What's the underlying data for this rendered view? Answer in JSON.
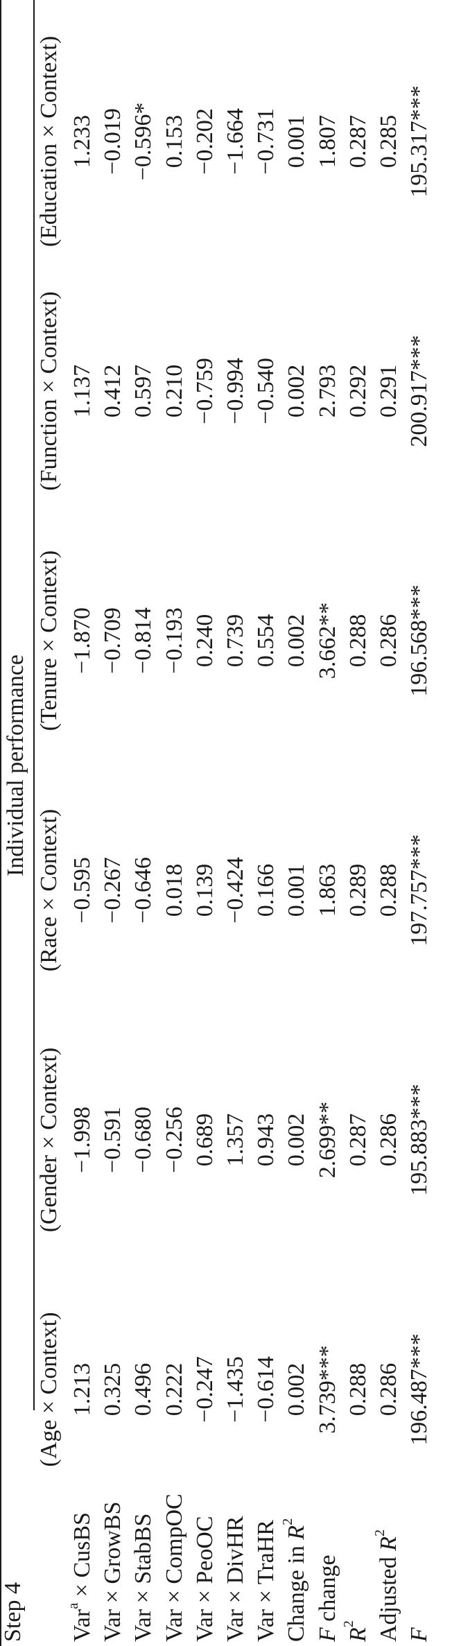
{
  "step_label": "Step 4",
  "header": {
    "group_title": "Individual performance",
    "columns": [
      "(Age × Context)",
      "(Gender × Context)",
      "(Race × Context)",
      "(Tenure × Context)",
      "(Function × Context)",
      "(Education × Context)"
    ]
  },
  "rows": [
    {
      "label": {
        "pre": "Var",
        "sup": "a",
        "post": " × CusBS"
      },
      "values": [
        "1.213",
        "−1.998",
        "−0.595",
        "−1.870",
        "1.137",
        "1.233"
      ]
    },
    {
      "label": {
        "pre": "Var × GrowBS"
      },
      "values": [
        "0.325",
        "−0.591",
        "−0.267",
        "−0.709",
        "0.412",
        "−0.019"
      ]
    },
    {
      "label": {
        "pre": "Var × StabBS"
      },
      "values": [
        "0.496",
        "−0.680",
        "−0.646",
        "−0.814",
        "0.597",
        "−0.596*"
      ]
    },
    {
      "label": {
        "pre": "Var × CompOC"
      },
      "values": [
        "0.222",
        "−0.256",
        "0.018",
        "−0.193",
        "0.210",
        "0.153"
      ]
    },
    {
      "label": {
        "pre": "Var × PeoOC"
      },
      "values": [
        "−0.247",
        "0.689",
        "0.139",
        "0.240",
        "−0.759",
        "−0.202"
      ]
    },
    {
      "label": {
        "pre": "Var × DivHR"
      },
      "values": [
        "−1.435",
        "1.357",
        "−0.424",
        "0.739",
        "−0.994",
        "−1.664"
      ]
    },
    {
      "label": {
        "pre": "Var × TraHR"
      },
      "values": [
        "−0.614",
        "0.943",
        "0.166",
        "0.554",
        "−0.540",
        "−0.731"
      ]
    },
    {
      "label": {
        "pre": "Change in ",
        "ital": "R",
        "sup": "2"
      },
      "values": [
        "0.002",
        "0.002",
        "0.001",
        "0.002",
        "0.002",
        "0.001"
      ]
    },
    {
      "label": {
        "ital": "F",
        "post": " change"
      },
      "values": [
        "3.739***",
        "2.699**",
        "1.863",
        "3.662**",
        "2.793",
        "1.807"
      ]
    },
    {
      "label": {
        "ital": "R",
        "sup": "2"
      },
      "values": [
        "0.288",
        "0.287",
        "0.289",
        "0.288",
        "0.292",
        "0.287"
      ]
    },
    {
      "label": {
        "pre": "Adjusted ",
        "ital": "R",
        "sup": "2"
      },
      "values": [
        "0.286",
        "0.286",
        "0.288",
        "0.286",
        "0.291",
        "0.285"
      ]
    },
    {
      "label": {
        "ital": "F"
      },
      "values": [
        "196.487***",
        "195.883***",
        "197.757***",
        "196.568***",
        "200.917***",
        "195.317***"
      ]
    }
  ]
}
